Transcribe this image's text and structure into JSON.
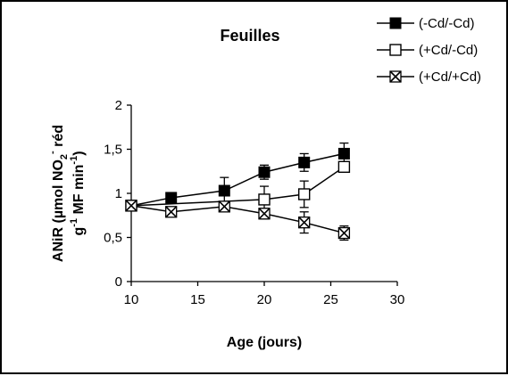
{
  "chart_data": {
    "type": "line",
    "title": "Feuilles",
    "xlabel": "Age (jours)",
    "ylabel_line1": "ANiR (µmol NO",
    "ylabel_sub": "2",
    "ylabel_sup": "-",
    "ylabel_line1_end": " réd",
    "ylabel_line2_pre": "g",
    "ylabel_line2_sup1": "-1",
    "ylabel_line2_mid": " MF min",
    "ylabel_line2_sup2": "-1",
    "ylabel_line2_end": ")",
    "xlim": [
      10,
      30
    ],
    "ylim": [
      0,
      2
    ],
    "xticks": [
      10,
      15,
      20,
      25,
      30
    ],
    "yticks": [
      0,
      0.5,
      1,
      1.5,
      2
    ],
    "xtick_labels": [
      "10",
      "15",
      "20",
      "25",
      "30"
    ],
    "ytick_labels": [
      "0",
      "0,5",
      "1",
      "1,5",
      "2"
    ],
    "grid": false,
    "legend_position": "top-right",
    "series": [
      {
        "name": "(-Cd/-Cd)",
        "marker": "filled-square",
        "x": [
          10,
          13,
          17,
          20,
          23,
          26
        ],
        "y": [
          0.86,
          0.95,
          1.03,
          1.24,
          1.35,
          1.45
        ],
        "err": [
          0.03,
          0.03,
          0.15,
          0.08,
          0.1,
          0.12
        ]
      },
      {
        "name": "(+Cd/-Cd)",
        "marker": "open-square",
        "x": [
          10,
          20,
          23,
          26
        ],
        "y": [
          0.86,
          0.93,
          0.99,
          1.3
        ],
        "err": [
          0.03,
          0.15,
          0.15,
          0.05
        ]
      },
      {
        "name": "(+Cd/+Cd)",
        "marker": "x-square",
        "x": [
          10,
          13,
          17,
          20,
          23,
          26
        ],
        "y": [
          0.86,
          0.79,
          0.85,
          0.77,
          0.67,
          0.55
        ],
        "err": [
          0.03,
          0.03,
          0.05,
          0.06,
          0.12,
          0.08
        ]
      }
    ]
  }
}
